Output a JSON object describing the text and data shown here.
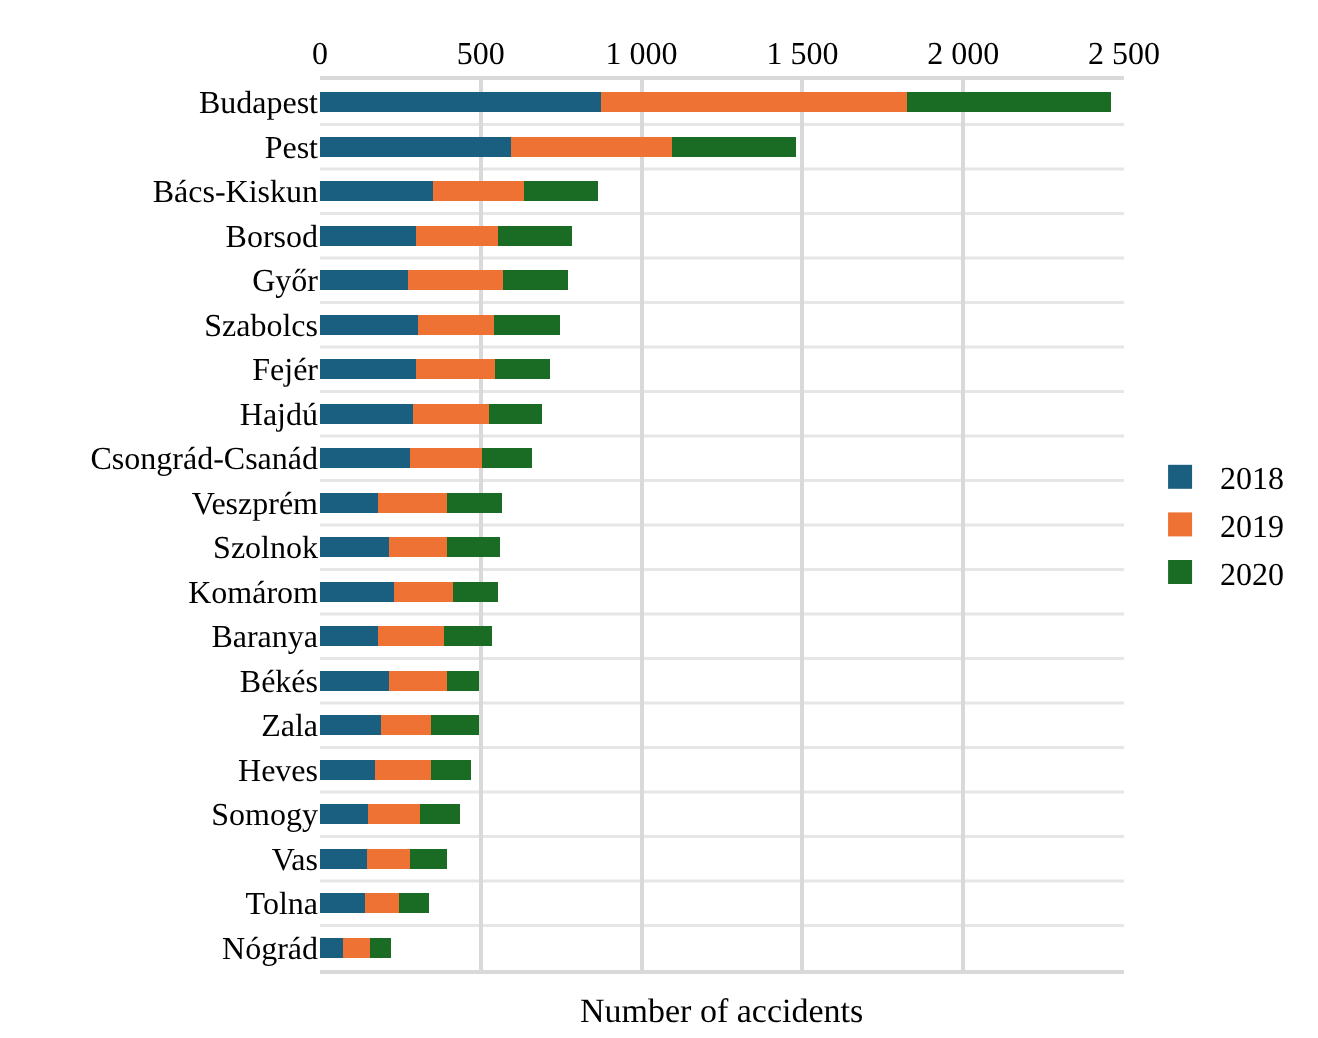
{
  "chart_data": {
    "type": "bar",
    "orientation": "horizontal",
    "stacked": true,
    "xlabel": "Number of accidents",
    "categories": [
      "Budapest",
      "Pest",
      "Bács-Kiskun",
      "Borsod",
      "Győr",
      "Szabolcs",
      "Fejér",
      "Hajdú",
      "Csongrád-Csanád",
      "Veszprém",
      "Szolnok",
      "Komárom",
      "Baranya",
      "Békés",
      "Zala",
      "Heves",
      "Somogy",
      "Vas",
      "Tolna",
      "Nógrád"
    ],
    "series": [
      {
        "name": "2018",
        "color": "#1a5e80",
        "values": [
          875,
          595,
          350,
          300,
          275,
          305,
          300,
          290,
          280,
          180,
          215,
          230,
          180,
          215,
          190,
          170,
          150,
          145,
          140,
          70
        ]
      },
      {
        "name": "2019",
        "color": "#ed7233",
        "values": [
          950,
          500,
          285,
          255,
          295,
          235,
          245,
          235,
          225,
          215,
          180,
          185,
          205,
          180,
          155,
          175,
          160,
          135,
          105,
          85
        ]
      },
      {
        "name": "2020",
        "color": "#1a6b23",
        "values": [
          635,
          385,
          230,
          230,
          200,
          205,
          170,
          165,
          155,
          170,
          165,
          140,
          150,
          100,
          150,
          125,
          125,
          115,
          95,
          65
        ]
      }
    ],
    "xlim": [
      0,
      2500
    ],
    "xticks": [
      0,
      500,
      {
        "value": 1000,
        "label": "1 000"
      },
      {
        "value": 1500,
        "label": "1 500"
      },
      {
        "value": 2000,
        "label": "2 000"
      },
      {
        "value": 2500,
        "label": "2 500"
      }
    ],
    "grid": true,
    "legend": "right"
  }
}
